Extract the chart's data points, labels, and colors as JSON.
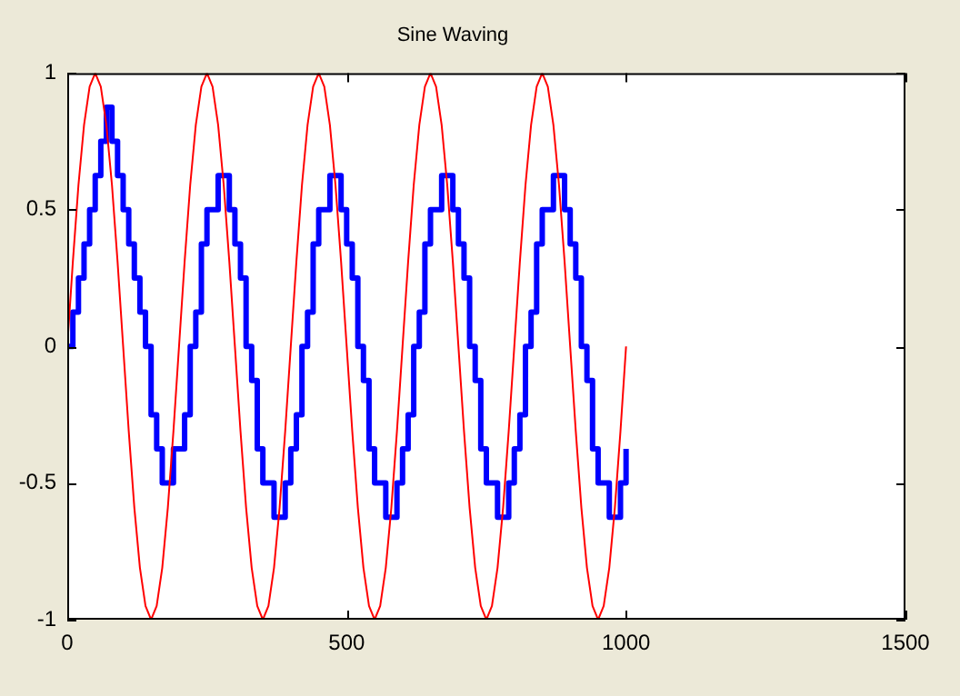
{
  "chart_data": {
    "type": "line",
    "title": "Sine Waving",
    "x": [
      0,
      10,
      20,
      30,
      40,
      50,
      60,
      70,
      80,
      90,
      100,
      110,
      120,
      130,
      140,
      150,
      160,
      170,
      180,
      190,
      200,
      210,
      220,
      230,
      240,
      250,
      260,
      270,
      280,
      290,
      300,
      310,
      320,
      330,
      340,
      350,
      360,
      370,
      380,
      390,
      400,
      410,
      420,
      430,
      440,
      450,
      460,
      470,
      480,
      490,
      500,
      510,
      520,
      530,
      540,
      550,
      560,
      570,
      580,
      590,
      600,
      610,
      620,
      630,
      640,
      650,
      660,
      670,
      680,
      690,
      700,
      710,
      720,
      730,
      740,
      750,
      760,
      770,
      780,
      790,
      800,
      810,
      820,
      830,
      840,
      850,
      860,
      870,
      880,
      890,
      900,
      910,
      920,
      930,
      940,
      950,
      960,
      970,
      980,
      990,
      1000
    ],
    "series": [
      {
        "type": "line",
        "color": "#ff0000",
        "values": [
          0,
          0.31,
          0.59,
          0.81,
          0.95,
          1,
          0.95,
          0.81,
          0.59,
          0.31,
          0,
          -0.31,
          -0.59,
          -0.81,
          -0.95,
          -1,
          -0.95,
          -0.81,
          -0.59,
          -0.31,
          0,
          0.31,
          0.59,
          0.81,
          0.95,
          1,
          0.95,
          0.81,
          0.59,
          0.31,
          0,
          -0.31,
          -0.59,
          -0.81,
          -0.95,
          -1,
          -0.95,
          -0.81,
          -0.59,
          -0.31,
          0,
          0.31,
          0.59,
          0.81,
          0.95,
          1,
          0.95,
          0.81,
          0.59,
          0.31,
          0,
          -0.31,
          -0.59,
          -0.81,
          -0.95,
          -1,
          -0.95,
          -0.81,
          -0.59,
          -0.31,
          0,
          0.31,
          0.59,
          0.81,
          0.95,
          1,
          0.95,
          0.81,
          0.59,
          0.31,
          0,
          -0.31,
          -0.59,
          -0.81,
          -0.95,
          -1,
          -0.95,
          -0.81,
          -0.59,
          -0.31,
          0,
          0.31,
          0.59,
          0.81,
          0.95,
          1,
          0.95,
          0.81,
          0.59,
          0.31,
          0,
          -0.31,
          -0.59,
          -0.81,
          -0.95,
          -1,
          -0.95,
          -0.81,
          -0.59,
          -0.31,
          0
        ]
      },
      {
        "type": "step",
        "color": "#0000ff",
        "values": [
          0,
          0.125,
          0.25,
          0.375,
          0.5,
          0.625,
          0.75,
          0.875,
          0.75,
          0.625,
          0.5,
          0.375,
          0.25,
          0.125,
          0,
          -0.25,
          -0.375,
          -0.5,
          -0.5,
          -0.375,
          -0.375,
          -0.25,
          0,
          0.125,
          0.375,
          0.5,
          0.5,
          0.625,
          0.625,
          0.5,
          0.375,
          0.25,
          0,
          -0.125,
          -0.375,
          -0.5,
          -0.5,
          -0.625,
          -0.625,
          -0.5,
          -0.375,
          -0.25,
          0,
          0.125,
          0.375,
          0.5,
          0.5,
          0.625,
          0.625,
          0.5,
          0.375,
          0.25,
          0,
          -0.125,
          -0.375,
          -0.5,
          -0.5,
          -0.625,
          -0.625,
          -0.5,
          -0.375,
          -0.25,
          0,
          0.125,
          0.375,
          0.5,
          0.5,
          0.625,
          0.625,
          0.5,
          0.375,
          0.25,
          0,
          -0.125,
          -0.375,
          -0.5,
          -0.5,
          -0.625,
          -0.625,
          -0.5,
          -0.375,
          -0.25,
          0,
          0.125,
          0.375,
          0.5,
          0.5,
          0.625,
          0.625,
          0.5,
          0.375,
          0.25,
          0,
          -0.125,
          -0.375,
          -0.5,
          -0.5,
          -0.625,
          -0.625,
          -0.5,
          -0.375
        ]
      }
    ],
    "xlim": [
      0,
      1500
    ],
    "xticks": [
      0,
      500,
      1000,
      1500
    ],
    "ylim": [
      -1,
      1
    ],
    "yticks": [
      -1,
      -0.5,
      0,
      0.5,
      1
    ],
    "grid": false,
    "legend": false,
    "marker": "none"
  }
}
